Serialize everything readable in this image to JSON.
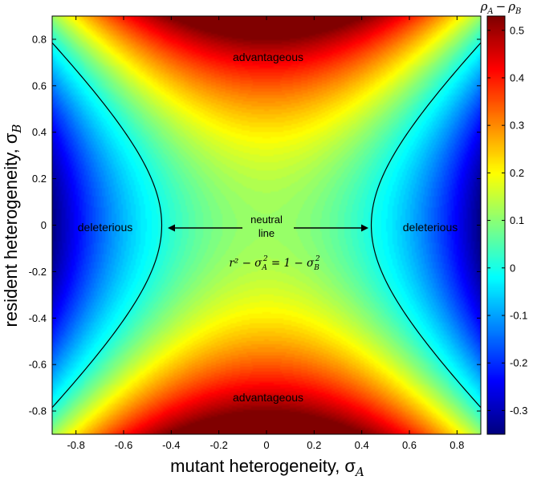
{
  "chart_data": {
    "type": "heatmap",
    "xlabel": "mutant heterogeneity, σ",
    "xlabel_sub": "A",
    "ylabel": "resident heterogeneity, σ",
    "ylabel_sub": "B",
    "colorbar_label": "ρ",
    "colorbar_label_sub_a": "A",
    "colorbar_label_minus": "−",
    "colorbar_label_b": "ρ",
    "colorbar_label_sub_b": "B",
    "xlim": [
      -0.9,
      0.9
    ],
    "ylim": [
      -0.9,
      0.9
    ],
    "clim": [
      -0.35,
      0.53
    ],
    "x_ticks": [
      -0.8,
      -0.6,
      -0.4,
      -0.2,
      0,
      0.2,
      0.4,
      0.6,
      0.8
    ],
    "x_tick_labels": [
      "-0.8",
      "-0.6",
      "-0.4",
      "-0.2",
      "0",
      "0.2",
      "0.4",
      "0.6",
      "0.8"
    ],
    "y_ticks": [
      0.8,
      0.6,
      0.4,
      0.2,
      0,
      -0.2,
      -0.4,
      -0.6,
      -0.8
    ],
    "y_tick_labels": [
      "0.8",
      "0.6",
      "0.4",
      "0.2",
      "0",
      "-0.2",
      "-0.4",
      "-0.6",
      "-0.8"
    ],
    "colorbar_ticks": [
      0.5,
      0.4,
      0.3,
      0.2,
      0.1,
      0,
      -0.1,
      -0.2,
      -0.3
    ],
    "colorbar_tick_labels": [
      "0.5",
      "0.4",
      "0.3",
      "0.2",
      "0.1",
      "0",
      "-0.1",
      "-0.2",
      "-0.3"
    ],
    "colormap": "jet",
    "neutral_line_r": 0.44,
    "annotations": {
      "advantageous_top": "advantageous",
      "advantageous_bottom": "advantageous",
      "deleterious_left": "deleterious",
      "deleterious_right": "deleterious",
      "neutral_line_1": "neutral",
      "neutral_line_2": "line",
      "equation": {
        "r2": "r² − σ",
        "a_sub": "A",
        "a_sup": "2",
        "mid": " = 1 − σ",
        "b_sub": "B",
        "b_sup": "2"
      }
    }
  }
}
